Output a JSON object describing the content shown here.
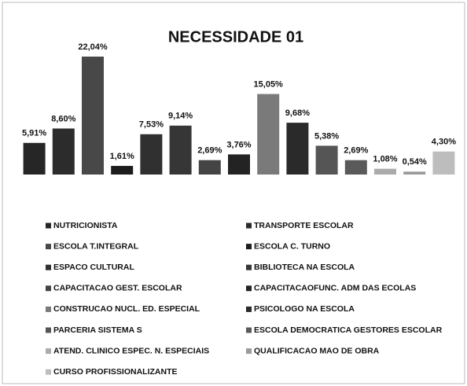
{
  "chart_data": {
    "type": "bar",
    "title": "NECESSIDADE 01",
    "categories": [
      "NUTRICIONISTA",
      "TRANSPORTE ESCOLAR",
      "ESCOLA T.INTEGRAL",
      "ESCOLA C. TURNO",
      "ESPACO CULTURAL",
      "BIBLIOTECA NA ESCOLA",
      "CAPACITACAO GEST. ESCOLAR",
      "CAPACITACAOFUNC. ADM DAS ECOLAS",
      "CONSTRUCAO NUCL. ED. ESPECIAL",
      "PSICOLOGO NA ESCOLA",
      "PARCERIA SISTEMA S",
      "ESCOLA DEMOCRATICA GESTORES ESCOLAR",
      "ATEND. CLINICO ESPEC. N. ESPECIAIS",
      "QUALIFICACAO MAO DE OBRA",
      "CURSO PROFISSIONALIZANTE"
    ],
    "values": [
      5.91,
      8.6,
      22.04,
      1.61,
      7.53,
      9.14,
      2.69,
      3.76,
      15.05,
      9.68,
      5.38,
      2.69,
      1.08,
      0.54,
      4.3
    ],
    "value_labels": [
      "5,91%",
      "8,60%",
      "22,04%",
      "1,61%",
      "7,53%",
      "9,14%",
      "2,69%",
      "3,76%",
      "15,05%",
      "9,68%",
      "5,38%",
      "2,69%",
      "1,08%",
      "0,54%",
      "4,30%"
    ],
    "colors": [
      "#262626",
      "#2c2c2c",
      "#484848",
      "#1c1c1c",
      "#303030",
      "#363636",
      "#444444",
      "#232323",
      "#7a7a7a",
      "#2a2a2a",
      "#555555",
      "#5a5a5a",
      "#ababab",
      "#9a9a9a",
      "#bdbdbd"
    ],
    "legend": "bottom"
  }
}
